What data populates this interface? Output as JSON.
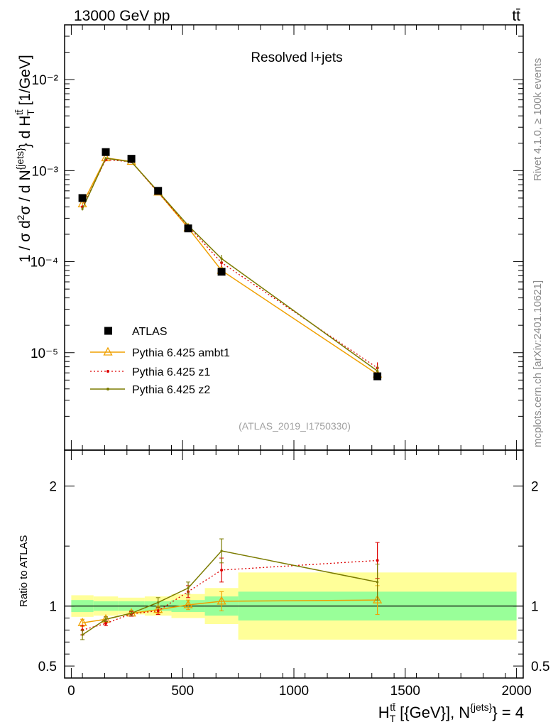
{
  "page": {
    "top_left": "13000 GeV pp",
    "top_right": "tt̄",
    "right_side_upper": "Rivet 4.1.0, ≥ 100k events",
    "right_side_lower": "mcplots.cern.ch [arXiv:2401.10621]"
  },
  "chart_data": {
    "type": "line",
    "title": "Resolved l+jets",
    "watermark": "(ATLAS_2019_I1750330)",
    "xlabel": "H_T^{tt̄} [{GeV}], N^{jets} = 4",
    "ylabel": "1 / σ d²σ / d N^{jets} } d H_T^{tt̄} [1/GeV]",
    "ratio_ylabel": "Ratio to ATLAS",
    "xlim": [
      -30,
      2030
    ],
    "ylim": [
      8.5e-07,
      0.04
    ],
    "ratio_ylim": [
      0.4,
      2.3
    ],
    "xticks": [
      0,
      500,
      1000,
      1500,
      2000
    ],
    "xtick_labels": [
      "0",
      "500",
      "1000",
      "1500",
      "2000"
    ],
    "yticks_labels": [
      "10⁻²",
      "10⁻³",
      "10⁻⁴",
      "10⁻⁵"
    ],
    "ratio_ytick_labels": [
      "0.5",
      "1",
      "2"
    ],
    "bin_edges": [
      0,
      100,
      210,
      330,
      450,
      600,
      750,
      2000
    ],
    "x": [
      50,
      155,
      270,
      390,
      525,
      675,
      1375
    ],
    "data": {
      "name": "ATLAS",
      "values": [
        0.0005,
        0.0016,
        0.00135,
        0.0006,
        0.000232,
        7.75e-05,
        5.5e-06
      ],
      "stat_band": [
        0.05,
        0.04,
        0.04,
        0.04,
        0.05,
        0.08,
        0.12
      ],
      "total_band": [
        0.09,
        0.08,
        0.07,
        0.08,
        0.1,
        0.15,
        0.28
      ]
    },
    "series": [
      {
        "name": "Pythia 6.425 ambt1",
        "color": "#f0a000",
        "values": [
          0.00043,
          0.00138,
          0.00126,
          0.00058,
          0.000235,
          8e-05,
          5.8e-06
        ],
        "ratio": [
          0.86,
          0.89,
          0.94,
          0.97,
          1.01,
          1.04,
          1.05
        ],
        "ratio_err": [
          0.03,
          0.02,
          0.02,
          0.03,
          0.04,
          0.08,
          0.12
        ]
      },
      {
        "name": "Pythia 6.425 z1",
        "color": "#dd0000",
        "values": [
          0.0004,
          0.00132,
          0.00125,
          0.000575,
          0.000245,
          9.75e-05,
          6.8e-06
        ],
        "ratio": [
          0.8,
          0.855,
          0.935,
          0.96,
          1.12,
          1.3,
          1.38
        ],
        "ratio_err": [
          0.04,
          0.02,
          0.02,
          0.03,
          0.05,
          0.1,
          0.15
        ]
      },
      {
        "name": "Pythia 6.425 z2",
        "color": "#7b7b00",
        "values": [
          0.00038,
          0.00137,
          0.00125,
          0.00059,
          0.00025,
          0.000108,
          6.3e-06
        ],
        "ratio": [
          0.76,
          0.89,
          0.94,
          1.03,
          1.15,
          1.46,
          1.2
        ],
        "ratio_err": [
          0.04,
          0.02,
          0.02,
          0.04,
          0.05,
          0.1,
          0.15
        ]
      }
    ]
  }
}
